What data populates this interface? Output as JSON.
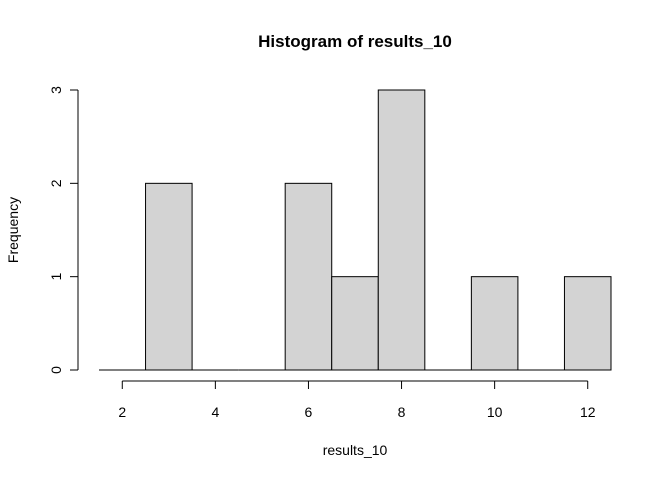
{
  "chart_data": {
    "type": "bar",
    "title": "Histogram of results_10",
    "xlabel": "results_10",
    "ylabel": "Frequency",
    "bins": [
      {
        "from": 1.5,
        "to": 2.5,
        "count": 0
      },
      {
        "from": 2.5,
        "to": 3.5,
        "count": 2
      },
      {
        "from": 3.5,
        "to": 4.5,
        "count": 0
      },
      {
        "from": 4.5,
        "to": 5.5,
        "count": 0
      },
      {
        "from": 5.5,
        "to": 6.5,
        "count": 2
      },
      {
        "from": 6.5,
        "to": 7.5,
        "count": 1
      },
      {
        "from": 7.5,
        "to": 8.5,
        "count": 3
      },
      {
        "from": 8.5,
        "to": 9.5,
        "count": 0
      },
      {
        "from": 9.5,
        "to": 10.5,
        "count": 1
      },
      {
        "from": 10.5,
        "to": 11.5,
        "count": 0
      },
      {
        "from": 11.5,
        "to": 12.5,
        "count": 1
      }
    ],
    "x_ticks": [
      2,
      4,
      6,
      8,
      10,
      12
    ],
    "x_tick_labels": [
      "2",
      "4",
      "6",
      "8",
      "10",
      "12"
    ],
    "y_ticks": [
      0,
      1,
      2,
      3
    ],
    "y_tick_labels": [
      "0",
      "1",
      "2",
      "3"
    ],
    "xlim": [
      1.5,
      12.5
    ],
    "ylim": [
      0,
      3
    ],
    "bar_fill": "#d3d3d3",
    "bar_stroke": "#000000",
    "grid": false
  }
}
